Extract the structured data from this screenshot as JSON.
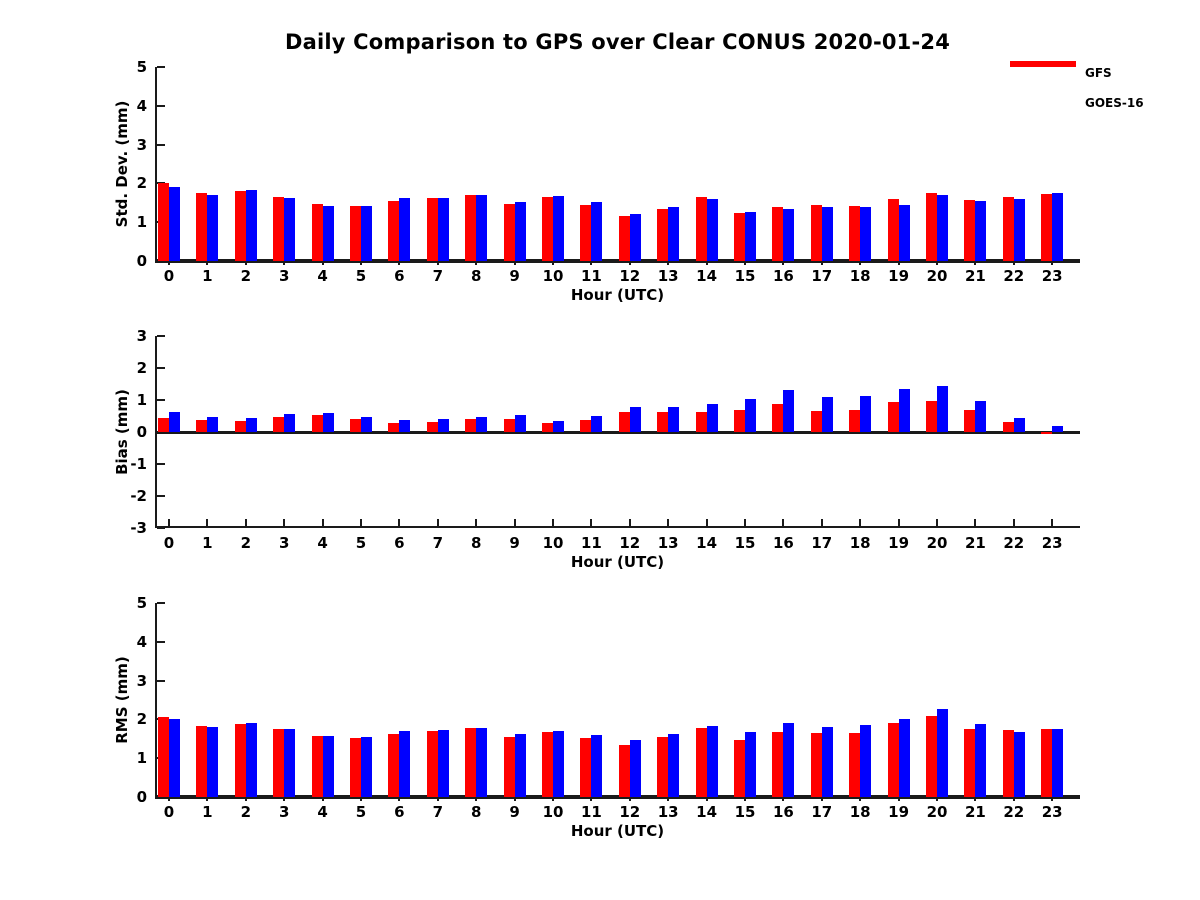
{
  "title": "Daily Comparison to GPS over Clear CONUS 2020-01-24",
  "legend": {
    "items": [
      {
        "label": "GFS",
        "color": "#ff0000"
      },
      {
        "label": "GOES-16",
        "color": "#0000ff"
      }
    ]
  },
  "colors": {
    "axis": "#1a1a1a",
    "gfs": "#ff0000",
    "goes16": "#0000ff",
    "background": "#ffffff"
  },
  "chart_data": [
    {
      "type": "bar",
      "name": "std-dev",
      "ylabel": "Std. Dev. (mm)",
      "xlabel": "Hour (UTC)",
      "ylim": [
        0,
        5
      ],
      "yticks": [
        0,
        1,
        2,
        3,
        4,
        5
      ],
      "grid": false,
      "categories": [
        0,
        1,
        2,
        3,
        4,
        5,
        6,
        7,
        8,
        9,
        10,
        11,
        12,
        13,
        14,
        15,
        16,
        17,
        18,
        19,
        20,
        21,
        22,
        23
      ],
      "series": [
        {
          "name": "GFS",
          "color": "#ff0000",
          "values": [
            2.02,
            1.76,
            1.8,
            1.65,
            1.48,
            1.43,
            1.55,
            1.62,
            1.7,
            1.46,
            1.64,
            1.45,
            1.17,
            1.35,
            1.65,
            1.23,
            1.39,
            1.45,
            1.43,
            1.6,
            1.76,
            1.57,
            1.66,
            1.72
          ]
        },
        {
          "name": "GOES-16",
          "color": "#0000ff",
          "values": [
            1.9,
            1.7,
            1.84,
            1.62,
            1.42,
            1.43,
            1.63,
            1.62,
            1.7,
            1.51,
            1.67,
            1.52,
            1.2,
            1.39,
            1.6,
            1.27,
            1.34,
            1.39,
            1.4,
            1.45,
            1.69,
            1.55,
            1.59,
            1.74
          ]
        }
      ]
    },
    {
      "type": "bar",
      "name": "bias",
      "ylabel": "Bias (mm)",
      "xlabel": "Hour (UTC)",
      "ylim": [
        -3,
        3
      ],
      "yticks": [
        3,
        2,
        1,
        0,
        -1,
        -2,
        -3
      ],
      "grid": false,
      "categories": [
        0,
        1,
        2,
        3,
        4,
        5,
        6,
        7,
        8,
        9,
        10,
        11,
        12,
        13,
        14,
        15,
        16,
        17,
        18,
        19,
        20,
        21,
        22,
        23
      ],
      "series": [
        {
          "name": "GFS",
          "color": "#ff0000",
          "values": [
            0.45,
            0.38,
            0.35,
            0.48,
            0.52,
            0.42,
            0.28,
            0.3,
            0.4,
            0.42,
            0.28,
            0.36,
            0.61,
            0.61,
            0.61,
            0.7,
            0.88,
            0.67,
            0.7,
            0.94,
            0.98,
            0.68,
            0.3,
            -0.05
          ]
        },
        {
          "name": "GOES-16",
          "color": "#0000ff",
          "values": [
            0.64,
            0.48,
            0.45,
            0.55,
            0.58,
            0.48,
            0.38,
            0.4,
            0.46,
            0.52,
            0.34,
            0.5,
            0.77,
            0.77,
            0.87,
            1.02,
            1.31,
            1.09,
            1.13,
            1.35,
            1.43,
            0.97,
            0.45,
            0.2
          ]
        }
      ]
    },
    {
      "type": "bar",
      "name": "rms",
      "ylabel": "RMS (mm)",
      "xlabel": "Hour (UTC)",
      "ylim": [
        0,
        5
      ],
      "yticks": [
        0,
        1,
        2,
        3,
        4,
        5
      ],
      "grid": false,
      "categories": [
        0,
        1,
        2,
        3,
        4,
        5,
        6,
        7,
        8,
        9,
        10,
        11,
        12,
        13,
        14,
        15,
        16,
        17,
        18,
        19,
        20,
        21,
        22,
        23
      ],
      "series": [
        {
          "name": "GFS",
          "color": "#ff0000",
          "values": [
            2.06,
            1.83,
            1.87,
            1.74,
            1.58,
            1.52,
            1.62,
            1.7,
            1.78,
            1.54,
            1.68,
            1.52,
            1.33,
            1.55,
            1.78,
            1.47,
            1.68,
            1.65,
            1.64,
            1.9,
            2.08,
            1.75,
            1.72,
            1.75
          ]
        },
        {
          "name": "GOES-16",
          "color": "#0000ff",
          "values": [
            2.0,
            1.81,
            1.92,
            1.74,
            1.56,
            1.54,
            1.71,
            1.72,
            1.78,
            1.62,
            1.71,
            1.61,
            1.47,
            1.62,
            1.82,
            1.67,
            1.91,
            1.81,
            1.85,
            2.02,
            2.26,
            1.87,
            1.68,
            1.76
          ]
        }
      ]
    }
  ]
}
